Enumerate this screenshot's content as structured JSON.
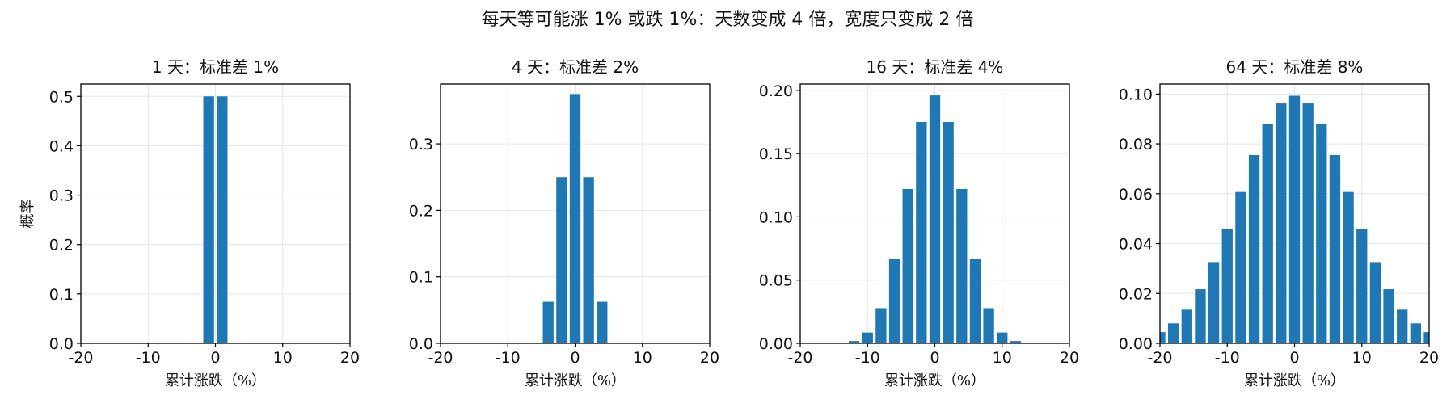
{
  "figure": {
    "title": "每天等可能涨 1% 或跌 1%：天数变成 4 倍，宽度只变成 2 倍"
  },
  "colors": {
    "bar": "#1f77b4",
    "grid": "#e6e6e6",
    "axis": "#000000"
  },
  "chart_data": [
    {
      "type": "bar",
      "title": "1 天：标准差 1%",
      "xlabel": "累计涨跌（%）",
      "ylabel": "概率",
      "xlim": [
        -20,
        20
      ],
      "ylim": [
        0,
        0.525
      ],
      "xticks": [
        -20,
        -10,
        0,
        10,
        20
      ],
      "yticks": [
        0.0,
        0.1,
        0.2,
        0.3,
        0.4,
        0.5
      ],
      "ytick_labels": [
        "0.0",
        "0.1",
        "0.2",
        "0.3",
        "0.4",
        "0.5"
      ],
      "grid": true,
      "x": [
        -1,
        1
      ],
      "values": [
        0.5,
        0.5
      ]
    },
    {
      "type": "bar",
      "title": "4 天：标准差 2%",
      "xlabel": "累计涨跌（%）",
      "ylabel": "",
      "xlim": [
        -20,
        20
      ],
      "ylim": [
        0,
        0.39
      ],
      "xticks": [
        -20,
        -10,
        0,
        10,
        20
      ],
      "yticks": [
        0.0,
        0.1,
        0.2,
        0.3
      ],
      "ytick_labels": [
        "0.0",
        "0.1",
        "0.2",
        "0.3"
      ],
      "grid": true,
      "x": [
        -4,
        -2,
        0,
        2,
        4
      ],
      "values": [
        0.0625,
        0.25,
        0.375,
        0.25,
        0.0625
      ]
    },
    {
      "type": "bar",
      "title": "16 天：标准差 4%",
      "xlabel": "累计涨跌（%）",
      "ylabel": "",
      "xlim": [
        -20,
        20
      ],
      "ylim": [
        0,
        0.205
      ],
      "xticks": [
        -20,
        -10,
        0,
        10,
        20
      ],
      "yticks": [
        0.0,
        0.05,
        0.1,
        0.15,
        0.2
      ],
      "ytick_labels": [
        "0.00",
        "0.05",
        "0.10",
        "0.15",
        "0.20"
      ],
      "grid": true,
      "x": [
        -16,
        -14,
        -12,
        -10,
        -8,
        -6,
        -4,
        -2,
        0,
        2,
        4,
        6,
        8,
        10,
        12,
        14,
        16
      ],
      "values": [
        1.53e-05,
        0.000244,
        0.00183,
        0.00854,
        0.0278,
        0.0667,
        0.122,
        0.175,
        0.196,
        0.175,
        0.122,
        0.0667,
        0.0278,
        0.00854,
        0.00183,
        0.000244,
        1.53e-05
      ]
    },
    {
      "type": "bar",
      "title": "64 天：标准差 8%",
      "xlabel": "累计涨跌（%）",
      "ylabel": "",
      "xlim": [
        -20,
        20
      ],
      "ylim": [
        0,
        0.104
      ],
      "xticks": [
        -20,
        -10,
        0,
        10,
        20
      ],
      "yticks": [
        0.0,
        0.02,
        0.04,
        0.06,
        0.08,
        0.1
      ],
      "ytick_labels": [
        "0.00",
        "0.02",
        "0.04",
        "0.06",
        "0.08",
        "0.10"
      ],
      "grid": true,
      "x": [
        -20,
        -18,
        -16,
        -14,
        -12,
        -10,
        -8,
        -6,
        -4,
        -2,
        0,
        2,
        4,
        6,
        8,
        10,
        12,
        14,
        16,
        18,
        20
      ],
      "values": [
        0.0045,
        0.008,
        0.0135,
        0.0217,
        0.0326,
        0.0458,
        0.0607,
        0.0755,
        0.0878,
        0.0962,
        0.0993,
        0.0962,
        0.0878,
        0.0755,
        0.0607,
        0.0458,
        0.0326,
        0.0217,
        0.0135,
        0.008,
        0.0045
      ]
    }
  ]
}
